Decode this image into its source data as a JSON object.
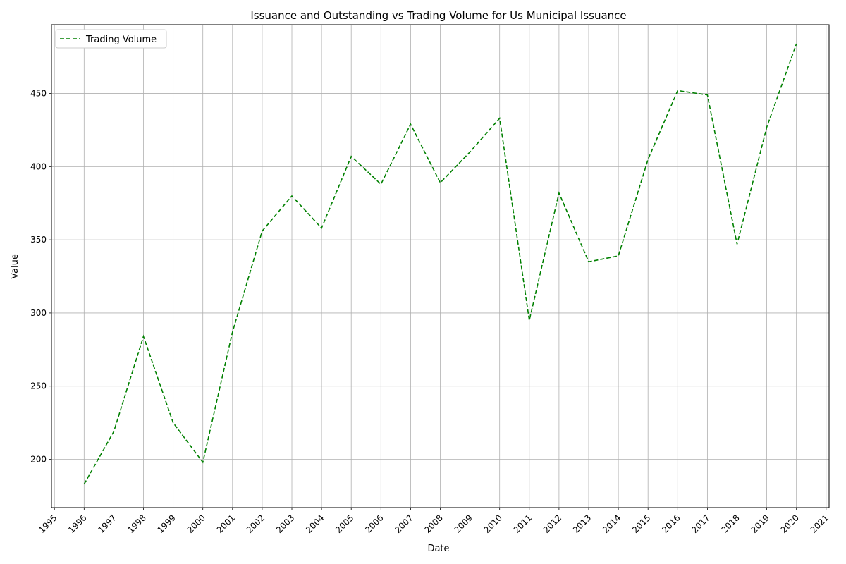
{
  "chart_data": {
    "type": "line",
    "title": "Issuance and Outstanding vs Trading Volume for Us Municipal Issuance",
    "xlabel": "Date",
    "ylabel": "Value",
    "x_ticks": [
      "1995",
      "1996",
      "1997",
      "1998",
      "1999",
      "2000",
      "2001",
      "2002",
      "2003",
      "2004",
      "2005",
      "2006",
      "2007",
      "2008",
      "2009",
      "2010",
      "2011",
      "2012",
      "2013",
      "2014",
      "2015",
      "2016",
      "2017",
      "2018",
      "2019",
      "2020",
      "2021"
    ],
    "y_ticks": [
      200,
      250,
      300,
      350,
      400,
      450
    ],
    "xlim": [
      1994.9,
      2021.1
    ],
    "ylim": [
      167,
      497
    ],
    "grid": true,
    "legend_position": "top-left",
    "series": [
      {
        "name": "Trading Volume",
        "color": "#008000",
        "line_style": "dashed",
        "x": [
          1996,
          1997,
          1998,
          1999,
          2000,
          2001,
          2002,
          2003,
          2004,
          2005,
          2006,
          2007,
          2008,
          2009,
          2010,
          2011,
          2012,
          2013,
          2014,
          2015,
          2016,
          2017,
          2018,
          2019,
          2020
        ],
        "values": [
          183,
          219,
          284,
          225,
          198,
          287,
          356,
          380,
          358,
          407,
          388,
          429,
          389,
          410,
          433,
          295,
          382,
          335,
          339,
          405,
          452,
          449,
          347,
          427,
          484
        ]
      }
    ]
  }
}
